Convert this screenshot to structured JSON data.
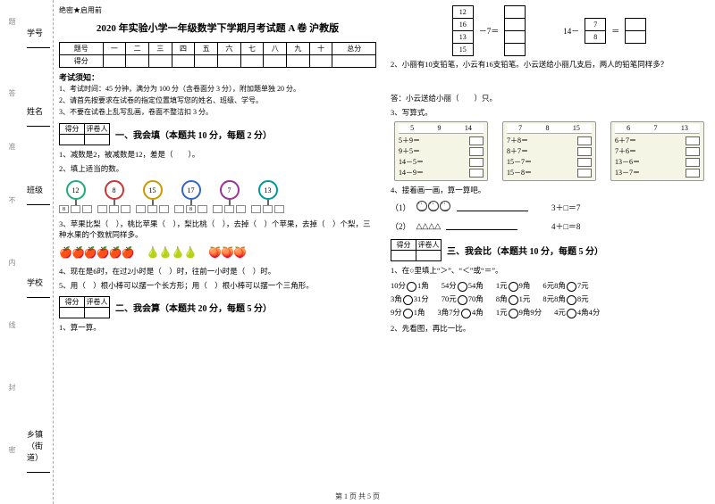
{
  "binding": {
    "labels": [
      "学号",
      "姓名",
      "班级",
      "学校",
      "乡镇（街道）"
    ],
    "marks": [
      "题",
      "答",
      "准",
      "不",
      "内",
      "线",
      "封",
      "密"
    ]
  },
  "confidential": "绝密★启用前",
  "title": "2020 年实验小学一年级数学下学期月考试题 A 卷  沪教版",
  "head_cols": [
    "题号",
    "一",
    "二",
    "三",
    "四",
    "五",
    "六",
    "七",
    "八",
    "九",
    "十",
    "总分"
  ],
  "head_row2": "得分",
  "notice_title": "考试须知：",
  "notice_items": [
    "1、考试时间：45 分钟，满分为 100 分（含卷面分 3 分），附加题单独 20 分。",
    "2、请首先按要求在试卷的指定位置填写您的姓名、班级、学号。",
    "3、不要在试卷上乱写乱画，卷面不整洁扣 3 分。"
  ],
  "scorebox": {
    "c1": "得分",
    "c2": "评卷人"
  },
  "sec1": {
    "title": "一、我会填（本题共 10 分，每题 2 分）",
    "q1": "1、减数是2，被减数是12，差是（　　）。",
    "q2": "2、填上适当的数。",
    "lolli_nums": [
      "12",
      "8",
      "15",
      "17",
      "7",
      "13"
    ],
    "flag": "8",
    "q3": "3、苹果比梨（　），桃比苹果（　），梨比桃（　），去掉（　）个苹果，去掉（　）个梨，三种水果的个数就同样多。",
    "q4": "4、现在是6时，在过2小时是（　）时，往前一小时是（　）时。",
    "q5": "5、用（　）根小棒可以摆一个长方形；用（　）根小棒可以摆一个三角形。"
  },
  "sec2": {
    "title": "二、我会算（本题共 20 分，每题 5 分）",
    "q1": "1、算一算。",
    "left_cells": [
      "12",
      "16",
      "13",
      "15"
    ],
    "left_tail": "－7＝",
    "right_lead": "14－",
    "right_cells": [
      "7",
      "8"
    ],
    "right_tail": "＝",
    "q2": "2、小丽有10支铅笔，小云有16支铅笔。小云送给小丽几支后，两人的铅笔同样多？",
    "ans_line": "答：小云送给小丽（　　）只。",
    "q3": "3、写算式。",
    "cards": [
      {
        "hdr": [
          "5",
          "9",
          "14"
        ],
        "lines": [
          "5＋9＝",
          "9＋5＝",
          "14－5＝",
          "14－9＝"
        ]
      },
      {
        "hdr": [
          "7",
          "8",
          "15"
        ],
        "lines": [
          "7＋8＝",
          "8＋7＝",
          "15－7＝",
          "15－8＝"
        ]
      },
      {
        "hdr": [
          "6",
          "7",
          "13"
        ],
        "lines": [
          "6＋7＝",
          "7＋6＝",
          "13－6＝",
          "13－7＝"
        ]
      }
    ],
    "q4": "4、接着画一画，算一算吧。",
    "eq1_label": "（1）",
    "eq1_rhs": "3＋□＝7",
    "eq2_label": "（2）",
    "eq2_rhs": "4＋□＝8"
  },
  "sec3": {
    "title": "三、我会比（本题共 10 分，每题 5 分）",
    "q1": "1、在○里填上“＞”、“＜”或“＝”。",
    "rows": [
      [
        "10分○1角",
        "54分○54角",
        "1元○9角",
        "6元8角○7元"
      ],
      [
        "3角○31分",
        "70元○70角",
        "8角○1元",
        "8元8角○8元"
      ],
      [
        "9分○1角",
        "3角7分○4角",
        "1元○9角9分",
        "4元○4角4分"
      ]
    ],
    "q2": "2、先看图，再比一比。"
  },
  "footer": "第 1 页  共 5 页"
}
